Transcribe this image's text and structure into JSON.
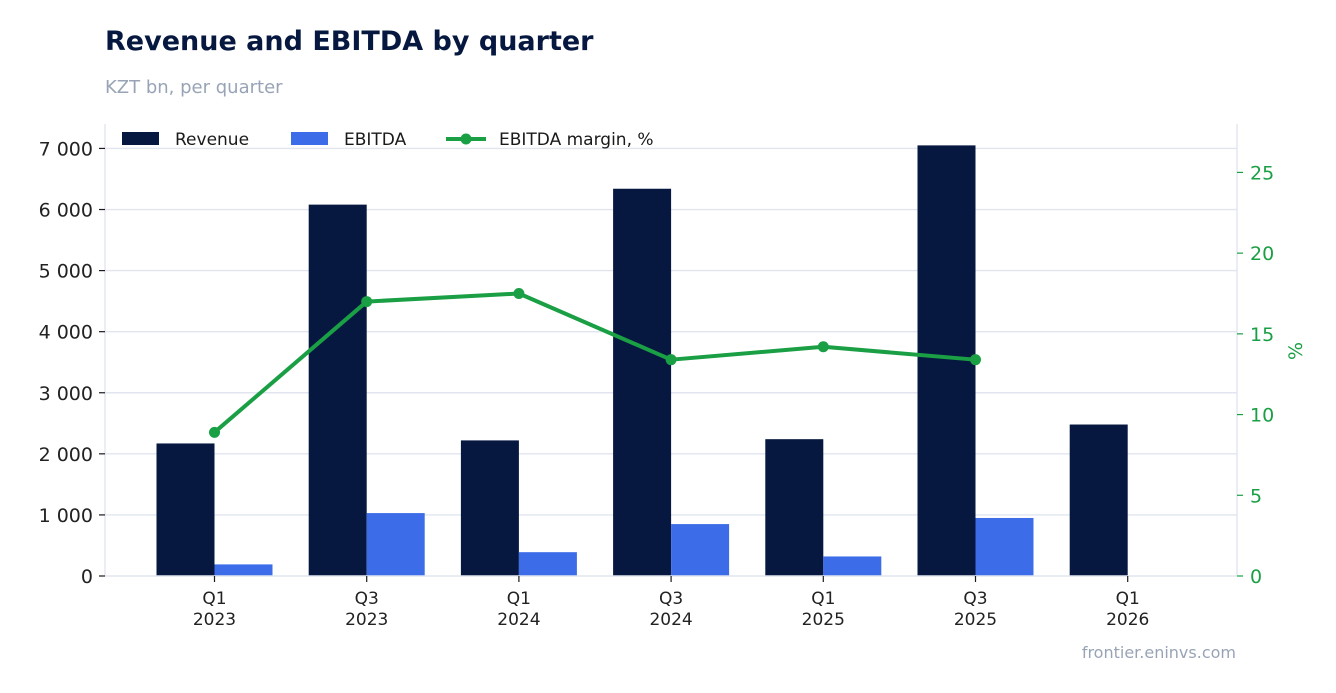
{
  "chart_data": {
    "type": "bar",
    "title": "Revenue and EBITDA by quarter",
    "subtitle": "KZT bn, per quarter",
    "source": "frontier.eninvs.com",
    "categories": [
      [
        "Q1",
        "2023"
      ],
      [
        "Q3",
        "2023"
      ],
      [
        "Q1",
        "2024"
      ],
      [
        "Q3",
        "2024"
      ],
      [
        "Q1",
        "2025"
      ],
      [
        "Q3",
        "2025"
      ],
      [
        "Q1",
        "2026"
      ]
    ],
    "series": [
      {
        "name": "Revenue",
        "kind": "bar",
        "axis": "left",
        "color": "#06183f",
        "values": [
          2170,
          6080,
          2220,
          6340,
          2240,
          7050,
          2480
        ]
      },
      {
        "name": "EBITDA",
        "kind": "bar",
        "axis": "left",
        "color": "#3c6ce8",
        "values": [
          190,
          1030,
          390,
          850,
          320,
          950,
          null
        ]
      },
      {
        "name": "EBITDA margin, %",
        "kind": "line",
        "axis": "right",
        "color": "#1a9f45",
        "values": [
          8.9,
          17.0,
          17.5,
          13.4,
          14.2,
          13.4,
          null
        ]
      }
    ],
    "y_left": {
      "min": 0,
      "max": 7400,
      "ticks": [
        0,
        1000,
        2000,
        3000,
        4000,
        5000,
        6000,
        7000
      ],
      "tick_labels": [
        "0",
        "1 000",
        "2 000",
        "3 000",
        "4 000",
        "5 000",
        "6 000",
        "7 000"
      ]
    },
    "y_right": {
      "min": 0,
      "max": 28,
      "ticks": [
        0,
        5,
        10,
        15,
        20,
        25
      ],
      "tick_labels": [
        "0",
        "5",
        "10",
        "15",
        "20",
        "25"
      ],
      "label": "%",
      "color": "#1a9f45"
    },
    "grid": true,
    "legend_position": "top-left"
  }
}
